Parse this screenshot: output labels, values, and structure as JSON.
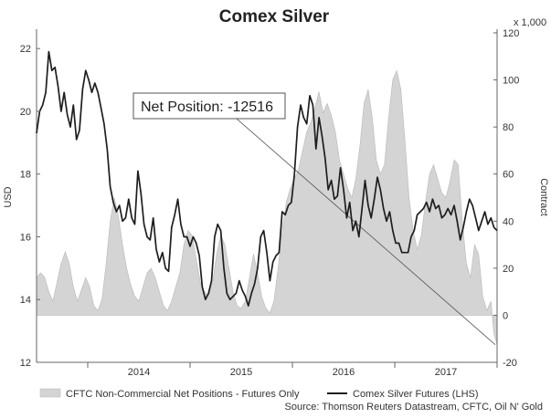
{
  "chart_data": {
    "type": "line",
    "title": "Comex Silver",
    "left_axis": {
      "label": "USD",
      "ticks": [
        12,
        14,
        16,
        18,
        20,
        22
      ],
      "range": [
        12,
        22.5
      ]
    },
    "right_axis": {
      "label": "Contract",
      "unit_note": "x 1,000",
      "ticks": [
        -20,
        0,
        20,
        40,
        60,
        80,
        100,
        120
      ],
      "range": [
        -20,
        120
      ]
    },
    "x_axis": {
      "ticks": [
        "2014",
        "2015",
        "2016",
        "2017"
      ],
      "range": [
        2013.5,
        2018.0
      ]
    },
    "annotation": {
      "text": "Net Position: -12516"
    },
    "legend": [
      {
        "name": "CFTC Non-Commercial Net Positions - Futures Only",
        "color": "#d4d4d4",
        "kind": "area"
      },
      {
        "name": "Comex Silver Futures (LHS)",
        "color": "#1e1e1e",
        "kind": "line"
      }
    ],
    "source": "Source: Thomson Reuters Datastream, CFTC, Oil N' Gold",
    "series": [
      {
        "name": "CFTC Non-Commercial Net Positions - Futures Only",
        "axis": "right",
        "color": "#d4d4d4",
        "points": [
          [
            2013.5,
            16
          ],
          [
            2013.54,
            18
          ],
          [
            2013.58,
            16
          ],
          [
            2013.62,
            10
          ],
          [
            2013.66,
            6
          ],
          [
            2013.7,
            14
          ],
          [
            2013.74,
            22
          ],
          [
            2013.78,
            27
          ],
          [
            2013.82,
            22
          ],
          [
            2013.86,
            12
          ],
          [
            2013.9,
            6
          ],
          [
            2013.94,
            11
          ],
          [
            2013.98,
            16
          ],
          [
            2014.02,
            12
          ],
          [
            2014.06,
            4
          ],
          [
            2014.1,
            2
          ],
          [
            2014.14,
            7
          ],
          [
            2014.18,
            22
          ],
          [
            2014.22,
            40
          ],
          [
            2014.26,
            50
          ],
          [
            2014.3,
            42
          ],
          [
            2014.34,
            30
          ],
          [
            2014.38,
            20
          ],
          [
            2014.42,
            13
          ],
          [
            2014.46,
            8
          ],
          [
            2014.5,
            6
          ],
          [
            2014.54,
            12
          ],
          [
            2014.58,
            18
          ],
          [
            2014.62,
            20
          ],
          [
            2014.66,
            16
          ],
          [
            2014.7,
            10
          ],
          [
            2014.74,
            4
          ],
          [
            2014.78,
            2
          ],
          [
            2014.82,
            6
          ],
          [
            2014.86,
            12
          ],
          [
            2014.9,
            18
          ],
          [
            2014.94,
            30
          ],
          [
            2014.98,
            36
          ],
          [
            2015.02,
            34
          ],
          [
            2015.06,
            24
          ],
          [
            2015.1,
            14
          ],
          [
            2015.14,
            10
          ],
          [
            2015.18,
            8
          ],
          [
            2015.22,
            14
          ],
          [
            2015.26,
            26
          ],
          [
            2015.3,
            34
          ],
          [
            2015.34,
            30
          ],
          [
            2015.38,
            20
          ],
          [
            2015.42,
            10
          ],
          [
            2015.46,
            4
          ],
          [
            2015.5,
            3
          ],
          [
            2015.54,
            6
          ],
          [
            2015.58,
            16
          ],
          [
            2015.62,
            26
          ],
          [
            2015.66,
            18
          ],
          [
            2015.7,
            8
          ],
          [
            2015.74,
            3
          ],
          [
            2015.78,
            1
          ],
          [
            2015.82,
            6
          ],
          [
            2015.86,
            20
          ],
          [
            2015.9,
            36
          ],
          [
            2015.94,
            48
          ],
          [
            2015.98,
            54
          ],
          [
            2016.02,
            58
          ],
          [
            2016.06,
            62
          ],
          [
            2016.1,
            70
          ],
          [
            2016.14,
            78
          ],
          [
            2016.18,
            82
          ],
          [
            2016.22,
            88
          ],
          [
            2016.26,
            95
          ],
          [
            2016.3,
            86
          ],
          [
            2016.34,
            90
          ],
          [
            2016.38,
            85
          ],
          [
            2016.42,
            78
          ],
          [
            2016.46,
            66
          ],
          [
            2016.5,
            60
          ],
          [
            2016.54,
            54
          ],
          [
            2016.58,
            50
          ],
          [
            2016.62,
            58
          ],
          [
            2016.66,
            72
          ],
          [
            2016.7,
            90
          ],
          [
            2016.74,
            96
          ],
          [
            2016.78,
            84
          ],
          [
            2016.82,
            66
          ],
          [
            2016.86,
            60
          ],
          [
            2016.9,
            64
          ],
          [
            2016.94,
            84
          ],
          [
            2016.98,
            100
          ],
          [
            2017.02,
            104
          ],
          [
            2017.06,
            96
          ],
          [
            2017.1,
            74
          ],
          [
            2017.14,
            50
          ],
          [
            2017.18,
            36
          ],
          [
            2017.22,
            28
          ],
          [
            2017.26,
            34
          ],
          [
            2017.3,
            48
          ],
          [
            2017.34,
            60
          ],
          [
            2017.38,
            64
          ],
          [
            2017.42,
            58
          ],
          [
            2017.46,
            52
          ],
          [
            2017.5,
            50
          ],
          [
            2017.54,
            57
          ],
          [
            2017.58,
            66
          ],
          [
            2017.62,
            64
          ],
          [
            2017.66,
            40
          ],
          [
            2017.7,
            22
          ],
          [
            2017.74,
            16
          ],
          [
            2017.78,
            30
          ],
          [
            2017.82,
            26
          ],
          [
            2017.86,
            8
          ],
          [
            2017.9,
            2
          ],
          [
            2017.94,
            6
          ],
          [
            2017.97,
            -8
          ],
          [
            2018.0,
            -12.5
          ]
        ]
      },
      {
        "name": "Comex Silver Futures (LHS)",
        "axis": "left",
        "color": "#1e1e1e",
        "points": [
          [
            2013.5,
            19.3
          ],
          [
            2013.53,
            20.0
          ],
          [
            2013.56,
            20.2
          ],
          [
            2013.59,
            20.6
          ],
          [
            2013.62,
            21.9
          ],
          [
            2013.65,
            21.3
          ],
          [
            2013.68,
            21.4
          ],
          [
            2013.71,
            20.8
          ],
          [
            2013.74,
            20.0
          ],
          [
            2013.77,
            20.6
          ],
          [
            2013.8,
            19.9
          ],
          [
            2013.83,
            19.5
          ],
          [
            2013.86,
            20.2
          ],
          [
            2013.89,
            19.1
          ],
          [
            2013.92,
            19.4
          ],
          [
            2013.95,
            20.7
          ],
          [
            2013.98,
            21.3
          ],
          [
            2014.01,
            21.0
          ],
          [
            2014.04,
            20.6
          ],
          [
            2014.07,
            20.9
          ],
          [
            2014.1,
            20.6
          ],
          [
            2014.13,
            20.1
          ],
          [
            2014.16,
            19.6
          ],
          [
            2014.19,
            18.8
          ],
          [
            2014.22,
            17.6
          ],
          [
            2014.25,
            17.1
          ],
          [
            2014.28,
            16.8
          ],
          [
            2014.31,
            17.0
          ],
          [
            2014.34,
            16.5
          ],
          [
            2014.37,
            16.6
          ],
          [
            2014.4,
            17.2
          ],
          [
            2014.43,
            16.6
          ],
          [
            2014.46,
            16.4
          ],
          [
            2014.49,
            18.1
          ],
          [
            2014.52,
            17.4
          ],
          [
            2014.55,
            16.4
          ],
          [
            2014.58,
            16.0
          ],
          [
            2014.61,
            15.9
          ],
          [
            2014.64,
            16.6
          ],
          [
            2014.67,
            15.6
          ],
          [
            2014.7,
            15.2
          ],
          [
            2014.73,
            15.5
          ],
          [
            2014.76,
            15.0
          ],
          [
            2014.79,
            14.9
          ],
          [
            2014.82,
            16.3
          ],
          [
            2014.85,
            16.7
          ],
          [
            2014.88,
            17.2
          ],
          [
            2014.91,
            16.4
          ],
          [
            2014.94,
            16.0
          ],
          [
            2014.97,
            16.0
          ],
          [
            2015.0,
            15.7
          ],
          [
            2015.03,
            16.0
          ],
          [
            2015.06,
            15.8
          ],
          [
            2015.09,
            15.4
          ],
          [
            2015.12,
            14.4
          ],
          [
            2015.15,
            14.0
          ],
          [
            2015.18,
            14.2
          ],
          [
            2015.21,
            14.6
          ],
          [
            2015.24,
            16.0
          ],
          [
            2015.27,
            16.4
          ],
          [
            2015.3,
            16.2
          ],
          [
            2015.33,
            15.0
          ],
          [
            2015.36,
            14.2
          ],
          [
            2015.39,
            14.0
          ],
          [
            2015.42,
            14.1
          ],
          [
            2015.45,
            14.2
          ],
          [
            2015.48,
            14.6
          ],
          [
            2015.51,
            14.3
          ],
          [
            2015.54,
            14.1
          ],
          [
            2015.57,
            13.8
          ],
          [
            2015.6,
            14.2
          ],
          [
            2015.63,
            14.5
          ],
          [
            2015.66,
            15.0
          ],
          [
            2015.69,
            16.0
          ],
          [
            2015.72,
            16.2
          ],
          [
            2015.75,
            15.5
          ],
          [
            2015.78,
            14.6
          ],
          [
            2015.81,
            15.2
          ],
          [
            2015.84,
            15.4
          ],
          [
            2015.87,
            15.5
          ],
          [
            2015.9,
            16.8
          ],
          [
            2015.93,
            16.7
          ],
          [
            2015.96,
            17.0
          ],
          [
            2015.99,
            17.1
          ],
          [
            2016.02,
            18.0
          ],
          [
            2016.05,
            19.5
          ],
          [
            2016.08,
            20.2
          ],
          [
            2016.11,
            19.8
          ],
          [
            2016.14,
            19.6
          ],
          [
            2016.17,
            20.5
          ],
          [
            2016.2,
            20.2
          ],
          [
            2016.23,
            18.8
          ],
          [
            2016.26,
            19.8
          ],
          [
            2016.29,
            19.2
          ],
          [
            2016.32,
            18.5
          ],
          [
            2016.35,
            17.5
          ],
          [
            2016.38,
            17.8
          ],
          [
            2016.41,
            17.2
          ],
          [
            2016.44,
            17.3
          ],
          [
            2016.47,
            18.2
          ],
          [
            2016.5,
            17.5
          ],
          [
            2016.53,
            16.6
          ],
          [
            2016.56,
            17.1
          ],
          [
            2016.59,
            16.2
          ],
          [
            2016.62,
            16.5
          ],
          [
            2016.65,
            16.0
          ],
          [
            2016.68,
            16.9
          ],
          [
            2016.71,
            17.8
          ],
          [
            2016.74,
            17.0
          ],
          [
            2016.77,
            16.6
          ],
          [
            2016.8,
            17.2
          ],
          [
            2016.83,
            17.9
          ],
          [
            2016.86,
            17.5
          ],
          [
            2016.89,
            16.9
          ],
          [
            2016.92,
            16.5
          ],
          [
            2016.95,
            16.8
          ],
          [
            2016.98,
            16.2
          ],
          [
            2017.01,
            15.8
          ],
          [
            2017.04,
            15.8
          ],
          [
            2017.07,
            15.5
          ],
          [
            2017.1,
            15.5
          ],
          [
            2017.13,
            15.5
          ],
          [
            2017.16,
            16.0
          ],
          [
            2017.19,
            16.2
          ],
          [
            2017.22,
            16.7
          ],
          [
            2017.25,
            16.8
          ],
          [
            2017.28,
            16.9
          ],
          [
            2017.31,
            17.1
          ],
          [
            2017.34,
            16.8
          ],
          [
            2017.37,
            17.2
          ],
          [
            2017.4,
            16.9
          ],
          [
            2017.43,
            17.0
          ],
          [
            2017.46,
            16.6
          ],
          [
            2017.49,
            16.7
          ],
          [
            2017.52,
            16.9
          ],
          [
            2017.55,
            16.7
          ],
          [
            2017.58,
            17.0
          ],
          [
            2017.61,
            16.5
          ],
          [
            2017.64,
            15.9
          ],
          [
            2017.67,
            16.3
          ],
          [
            2017.7,
            16.8
          ],
          [
            2017.73,
            17.2
          ],
          [
            2017.76,
            17.0
          ],
          [
            2017.79,
            16.6
          ],
          [
            2017.82,
            16.2
          ],
          [
            2017.85,
            16.5
          ],
          [
            2017.88,
            16.8
          ],
          [
            2017.91,
            16.4
          ],
          [
            2017.94,
            16.6
          ],
          [
            2017.97,
            16.3
          ],
          [
            2018.0,
            16.2
          ]
        ]
      }
    ]
  }
}
